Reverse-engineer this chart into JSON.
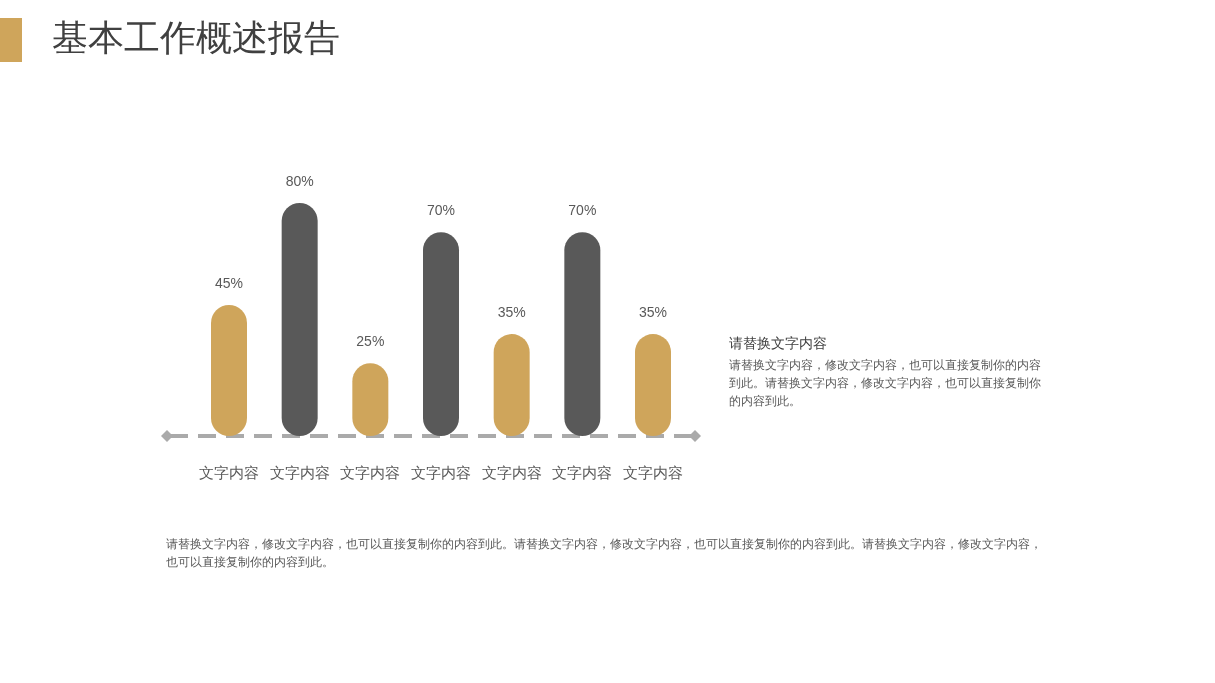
{
  "chart_data": {
    "type": "bar",
    "title": "基本工作概述报告",
    "categories": [
      "文字内容",
      "文字内容",
      "文字内容",
      "文字内容",
      "文字内容",
      "文字内容",
      "文字内容"
    ],
    "values": [
      45,
      80,
      25,
      70,
      35,
      70,
      35
    ],
    "colors": [
      "#cfa55b",
      "#595959",
      "#cfa55b",
      "#595959",
      "#cfa55b",
      "#595959",
      "#cfa55b"
    ],
    "value_labels": [
      "45%",
      "80%",
      "25%",
      "70%",
      "35%",
      "70%",
      "35%"
    ],
    "ref_lines": [
      {
        "axis": "y",
        "value": 0,
        "color": "#aaaaaa",
        "line_style": "dashed"
      }
    ],
    "annotations": [
      "请替换文字内容",
      "请替换文字内容，修改文字内容，也可以直接复制你的内容到此。请替换文字内容，修改文字内容，也可以直接复制你的内容到此。",
      "请替换文字内容，修改文字内容，也可以直接复制你的内容到此。请替换文字内容，修改文字内容，也可以直接复制你的内容到此。请替换文字内容，修改文字内容，也可以直接复制你的内容到此。"
    ]
  }
}
